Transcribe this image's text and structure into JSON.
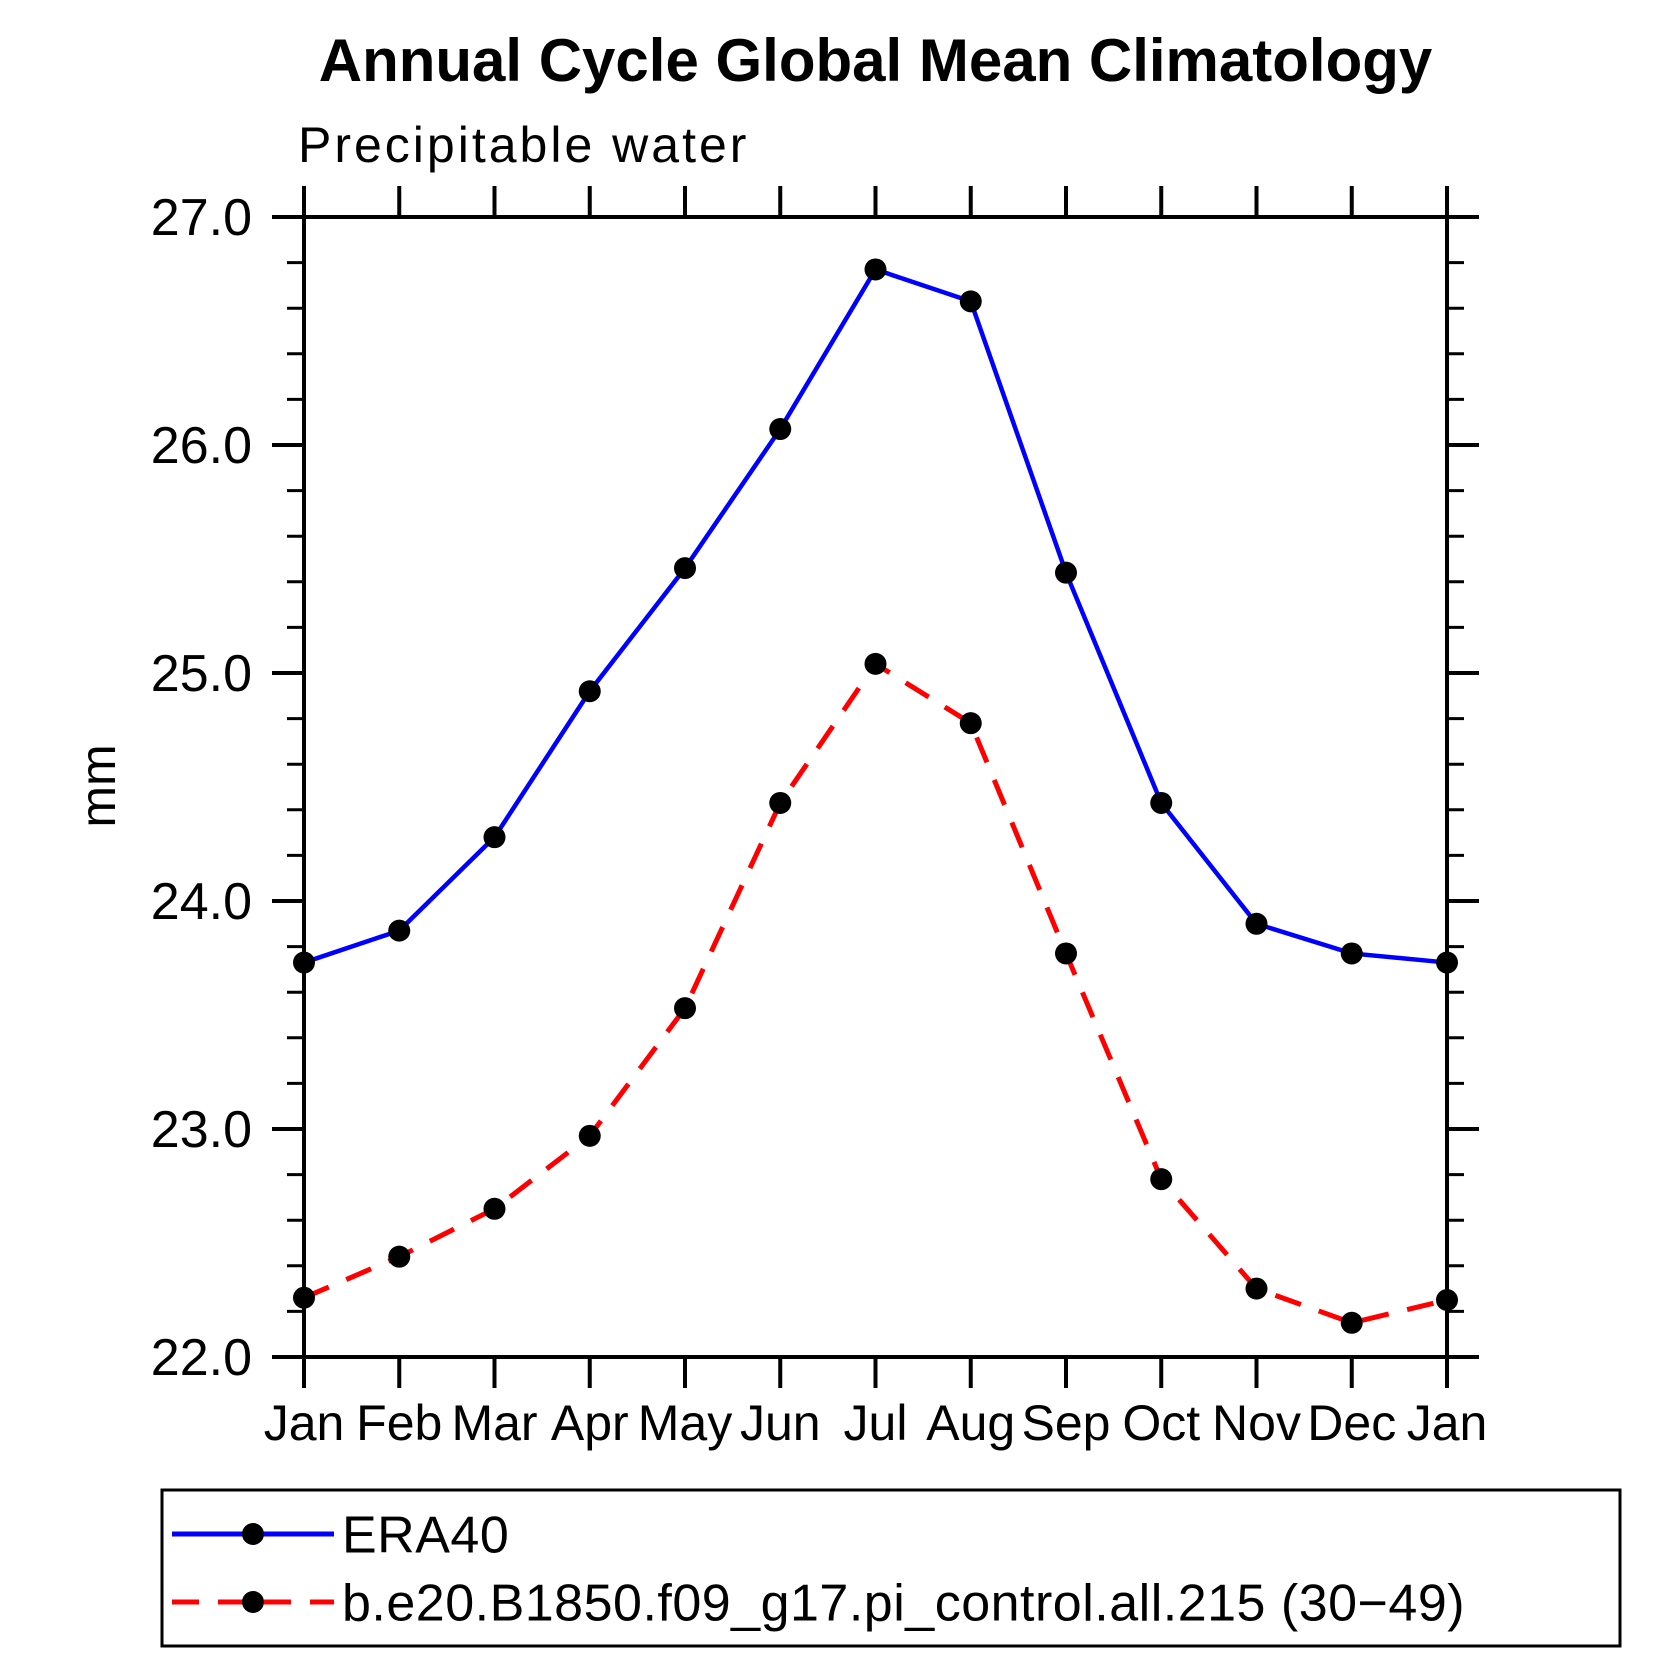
{
  "title": "Annual Cycle Global Mean Climatology",
  "chart_data": {
    "type": "line",
    "title": "Annual Cycle Global Mean Climatology",
    "subtitle": "Precipitable water",
    "ylabel": "mm",
    "xlabel": "",
    "categories": [
      "Jan",
      "Feb",
      "Mar",
      "Apr",
      "May",
      "Jun",
      "Jul",
      "Aug",
      "Sep",
      "Oct",
      "Nov",
      "Dec",
      "Jan"
    ],
    "ylim": [
      22.0,
      27.0
    ],
    "ytick_labels": [
      "22.0",
      "23.0",
      "24.0",
      "25.0",
      "26.0",
      "27.0"
    ],
    "ytick_major_step": 1.0,
    "ytick_minor_step": 0.2,
    "grid": "off",
    "legend_position": "bottom-left-box",
    "background_color": "#ffffff",
    "axis_color": "#000000",
    "marker_color": "#000000",
    "series": [
      {
        "name": "ERA40",
        "color": "#0000ff",
        "line_style": "solid",
        "marker": "filled-circle",
        "values": [
          23.73,
          23.87,
          24.28,
          24.92,
          25.46,
          26.07,
          26.77,
          26.63,
          25.44,
          24.43,
          23.9,
          23.77,
          23.73
        ]
      },
      {
        "name": "b.e20.B1850.f09_g17.pi_control.all.215 (30−49)",
        "color": "#ff0000",
        "line_style": "dashed",
        "marker": "filled-circle",
        "values": [
          22.26,
          22.44,
          22.65,
          22.97,
          23.53,
          24.43,
          25.04,
          24.78,
          23.77,
          22.78,
          22.3,
          22.15,
          22.25
        ]
      }
    ]
  }
}
